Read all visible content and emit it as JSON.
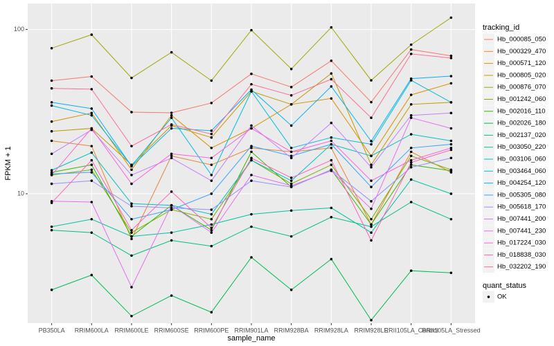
{
  "chart_data": {
    "type": "line",
    "x_label": "sample_name",
    "y_label": "FPKM + 1",
    "legend_title": "tracking_id",
    "shape_legend_title": "quant_status",
    "shape_legend_items": [
      "OK"
    ],
    "log_y": true,
    "grid": true,
    "legend_position": "right",
    "categories": [
      "PB350LA",
      "RRIM600LA",
      "RRIM600LE",
      "RRIM600SE",
      "RRIM600PE",
      "RRIM901LA",
      "RRIM928BA",
      "RRIM928LA",
      "RRIM928LE",
      "RRII105LA_Control",
      "RRII105LA_Stressed"
    ],
    "ylim": [
      1.63,
      144
    ],
    "yticks": [
      10,
      100
    ],
    "series": [
      {
        "name": "Hb_000085_050",
        "color": "#F8766D",
        "values": [
          48.8,
          51.7,
          31.4,
          31.1,
          35.7,
          53.7,
          44.6,
          64.5,
          36.1,
          75.5,
          69.1
        ]
      },
      {
        "name": "Hb_000329_470",
        "color": "#EA8331",
        "values": [
          21,
          19.5,
          5.3,
          17,
          15,
          19,
          18,
          19,
          6.5,
          18,
          13.5
        ]
      },
      {
        "name": "Hb_000571_120",
        "color": "#D89000",
        "values": [
          27.5,
          31,
          14,
          30,
          19,
          25,
          35,
          38,
          17,
          40,
          47
        ]
      },
      {
        "name": "Hb_000805_020",
        "color": "#C09B00",
        "values": [
          24,
          25,
          15,
          26,
          22,
          42,
          35,
          54,
          15,
          35,
          36
        ]
      },
      {
        "name": "Hb_000876_070",
        "color": "#A3A500",
        "values": [
          76.9,
          93,
          50.7,
          72.6,
          48.8,
          99,
          57.5,
          103,
          49,
          80.8,
          118
        ]
      },
      {
        "name": "Hb_001242_060",
        "color": "#7CAE00",
        "values": [
          13,
          14,
          5.8,
          8,
          7,
          16,
          11.5,
          15,
          7,
          17,
          14
        ]
      },
      {
        "name": "Hb_002016_110",
        "color": "#39B600",
        "values": [
          13.5,
          15,
          5.5,
          8.5,
          6,
          18,
          11,
          14,
          6.5,
          15,
          13.8
        ]
      },
      {
        "name": "Hb_002026_180",
        "color": "#00BB4E",
        "values": [
          2.6,
          3.2,
          1.8,
          2.4,
          1.9,
          4.1,
          2.6,
          4,
          1.7,
          3.4,
          3.3
        ]
      },
      {
        "name": "Hb_002137_020",
        "color": "#00BF7D",
        "values": [
          6,
          5.8,
          4.2,
          5.2,
          4.8,
          6.3,
          5.5,
          7.2,
          6.3,
          8.9,
          7
        ]
      },
      {
        "name": "Hb_003050_220",
        "color": "#00C1A3",
        "values": [
          6.3,
          7,
          5.5,
          5.8,
          6.5,
          7.5,
          7.9,
          8.2,
          5.8,
          12.2,
          10
        ]
      },
      {
        "name": "Hb_003106_060",
        "color": "#00BFC4",
        "values": [
          13.9,
          17.8,
          8.7,
          8.5,
          7.5,
          16,
          12,
          20,
          17,
          23,
          21
        ]
      },
      {
        "name": "Hb_003464_060",
        "color": "#00BAE0",
        "values": [
          34.4,
          30,
          14.8,
          29,
          13,
          42,
          19,
          22,
          20,
          49,
          36
        ]
      },
      {
        "name": "Hb_004254_120",
        "color": "#00B0F6",
        "values": [
          36,
          33,
          14.7,
          25,
          24.2,
          43,
          26,
          45,
          20.9,
          50.2,
          52
        ]
      },
      {
        "name": "Hb_005305_080",
        "color": "#35A2FF",
        "values": [
          13.2,
          13.5,
          7,
          8,
          10,
          19.5,
          17,
          20,
          11,
          19,
          20
        ]
      },
      {
        "name": "Hb_005618_170",
        "color": "#9590FF",
        "values": [
          11.5,
          12,
          8.4,
          8.2,
          8,
          12,
          11,
          14,
          9,
          14.5,
          16.5
        ]
      },
      {
        "name": "Hb_007441_200",
        "color": "#C77CFF",
        "values": [
          17.5,
          24.5,
          13,
          16.5,
          12,
          26,
          16.5,
          27,
          14.5,
          30,
          31
        ]
      },
      {
        "name": "Hb_007441_230",
        "color": "#E76BF3",
        "values": [
          9,
          8.9,
          2.7,
          8.5,
          5.8,
          13,
          11.2,
          13.8,
          8.1,
          29,
          25
        ]
      },
      {
        "name": "Hb_017224_030",
        "color": "#FA62DB",
        "values": [
          13,
          25,
          11.5,
          17.5,
          16.5,
          25,
          18,
          21,
          12,
          16,
          19
        ]
      },
      {
        "name": "Hb_018838_030",
        "color": "#FF62BC",
        "values": [
          8.8,
          16,
          6,
          10.3,
          6.2,
          16.5,
          12.5,
          16,
          5.2,
          15.5,
          18.5
        ]
      },
      {
        "name": "Hb_032202_190",
        "color": "#FF6C91",
        "values": [
          43.8,
          43.3,
          19.5,
          26.4,
          23.1,
          46.4,
          39.7,
          49.8,
          29,
          71,
          67
        ]
      }
    ]
  }
}
